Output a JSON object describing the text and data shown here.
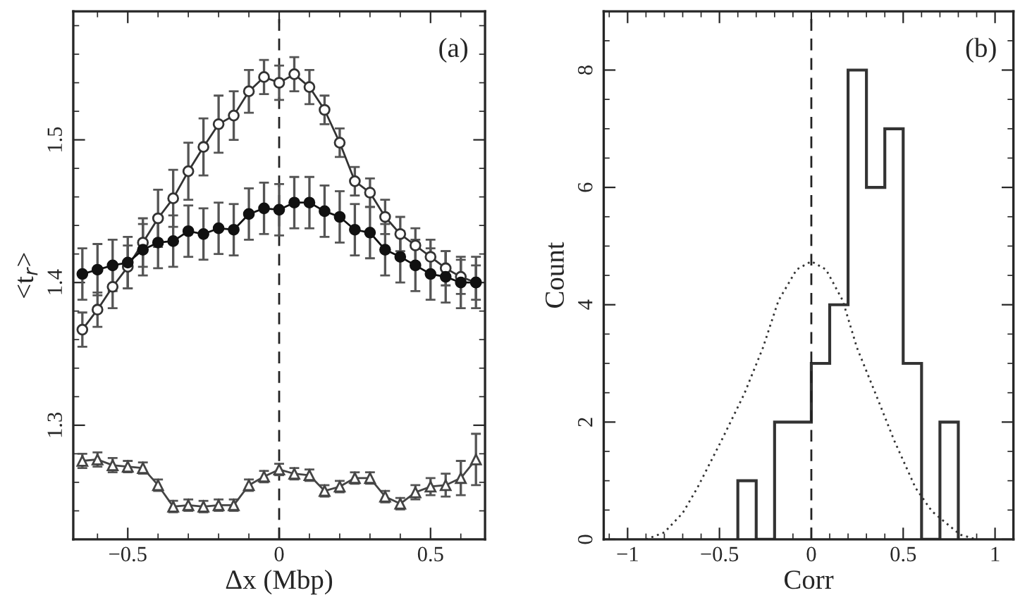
{
  "chart_data": [
    {
      "type": "line",
      "xlabel": "Δx (Mbp)",
      "ylabel": "<t$_{r}$>",
      "annotations": [
        "(a)"
      ],
      "x": [
        -0.65,
        -0.6,
        -0.55,
        -0.5,
        -0.45,
        -0.4,
        -0.35,
        -0.3,
        -0.25,
        -0.2,
        -0.15,
        -0.1,
        -0.05,
        0,
        0.05,
        0.1,
        0.15,
        0.2,
        0.25,
        0.3,
        0.35,
        0.4,
        0.45,
        0.5,
        0.55,
        0.6,
        0.65
      ],
      "series": [
        {
          "color": "#333333",
          "marker": "circle",
          "values": [
            1.367,
            1.381,
            1.397,
            1.411,
            1.428,
            1.445,
            1.459,
            1.478,
            1.495,
            1.511,
            1.517,
            1.534,
            1.544,
            1.54,
            1.546,
            1.537,
            1.521,
            1.498,
            1.471,
            1.463,
            1.446,
            1.434,
            1.426,
            1.418,
            1.41,
            1.404,
            1.4
          ],
          "errors": [
            0.012,
            0.012,
            0.015,
            0.015,
            0.017,
            0.02,
            0.02,
            0.02,
            0.02,
            0.02,
            0.017,
            0.015,
            0.012,
            0.012,
            0.012,
            0.012,
            0.01,
            0.01,
            0.01,
            0.01,
            0.012,
            0.012,
            0.012,
            0.012,
            0.012,
            0.012,
            0.012
          ]
        },
        {
          "color": "#111111",
          "marker": "circle",
          "values": [
            1.406,
            1.409,
            1.412,
            1.414,
            1.423,
            1.428,
            1.429,
            1.436,
            1.434,
            1.438,
            1.437,
            1.448,
            1.452,
            1.451,
            1.456,
            1.456,
            1.45,
            1.446,
            1.437,
            1.435,
            1.423,
            1.418,
            1.412,
            1.406,
            1.404,
            1.4,
            1.4
          ],
          "errors": [
            0.018,
            0.018,
            0.018,
            0.018,
            0.018,
            0.018,
            0.018,
            0.018,
            0.018,
            0.018,
            0.018,
            0.018,
            0.018,
            0.018,
            0.018,
            0.018,
            0.018,
            0.018,
            0.018,
            0.018,
            0.018,
            0.018,
            0.018,
            0.018,
            0.018,
            0.018,
            0.018
          ]
        },
        {
          "color": "#444444",
          "marker": "triangle",
          "values": [
            1.275,
            1.276,
            1.272,
            1.271,
            1.27,
            1.258,
            1.243,
            1.244,
            1.243,
            1.244,
            1.244,
            1.258,
            1.264,
            1.269,
            1.266,
            1.265,
            1.254,
            1.257,
            1.263,
            1.263,
            1.25,
            1.245,
            1.253,
            1.257,
            1.258,
            1.263,
            1.276
          ],
          "errors": [
            0.005,
            0.005,
            0.005,
            0.004,
            0.004,
            0.004,
            0.004,
            0.004,
            0.004,
            0.004,
            0.004,
            0.004,
            0.004,
            0.004,
            0.004,
            0.004,
            0.004,
            0.004,
            0.004,
            0.004,
            0.004,
            0.004,
            0.005,
            0.006,
            0.008,
            0.012,
            0.018
          ]
        }
      ],
      "xlim": [
        -0.68,
        0.68
      ],
      "ylim": [
        1.22,
        1.59
      ],
      "xticks": [
        -0.5,
        0,
        0.5
      ],
      "yticks": [
        1.3,
        1.4,
        1.5
      ],
      "ref_lines": [
        {
          "axis": "x",
          "value": 0,
          "label": null,
          "line_style": "dashed"
        }
      ],
      "grid": false,
      "legend": false
    },
    {
      "type": "histogram",
      "xlabel": "Corr",
      "ylabel": "Count",
      "annotations": [
        "(b)"
      ],
      "bins": [
        -0.4,
        -0.3,
        -0.2,
        -0.1,
        0,
        0.1,
        0.2,
        0.3,
        0.4,
        0.5,
        0.6,
        0.7,
        0.8
      ],
      "values": [
        1,
        0,
        2,
        2,
        3,
        4,
        8,
        6,
        7,
        3,
        0,
        2
      ],
      "color": "#333333",
      "series": [
        {
          "type": "line",
          "line_style": "dotted",
          "color": "#333333",
          "x": [
            -0.9,
            -0.8,
            -0.7,
            -0.62,
            -0.49,
            -0.365,
            -0.263,
            -0.179,
            -0.08,
            0,
            0.08,
            0.171,
            0.248,
            0.35,
            0.452,
            0.567,
            0.656,
            0.81,
            0.9
          ],
          "values": [
            0,
            0.12,
            0.45,
            0.88,
            1.68,
            2.48,
            3.27,
            4.07,
            4.6,
            4.74,
            4.6,
            4.07,
            3.27,
            2.48,
            1.68,
            0.88,
            0.48,
            0.08,
            0
          ]
        }
      ],
      "xlim": [
        -1.13,
        1.1
      ],
      "ylim": [
        0,
        9
      ],
      "xticks": [
        -1,
        -0.5,
        0,
        0.5,
        1
      ],
      "yticks": [
        0,
        2,
        4,
        6,
        8
      ],
      "ref_lines": [
        {
          "axis": "x",
          "value": 0,
          "label": null,
          "line_style": "dashed"
        }
      ],
      "grid": false,
      "legend": false
    }
  ]
}
